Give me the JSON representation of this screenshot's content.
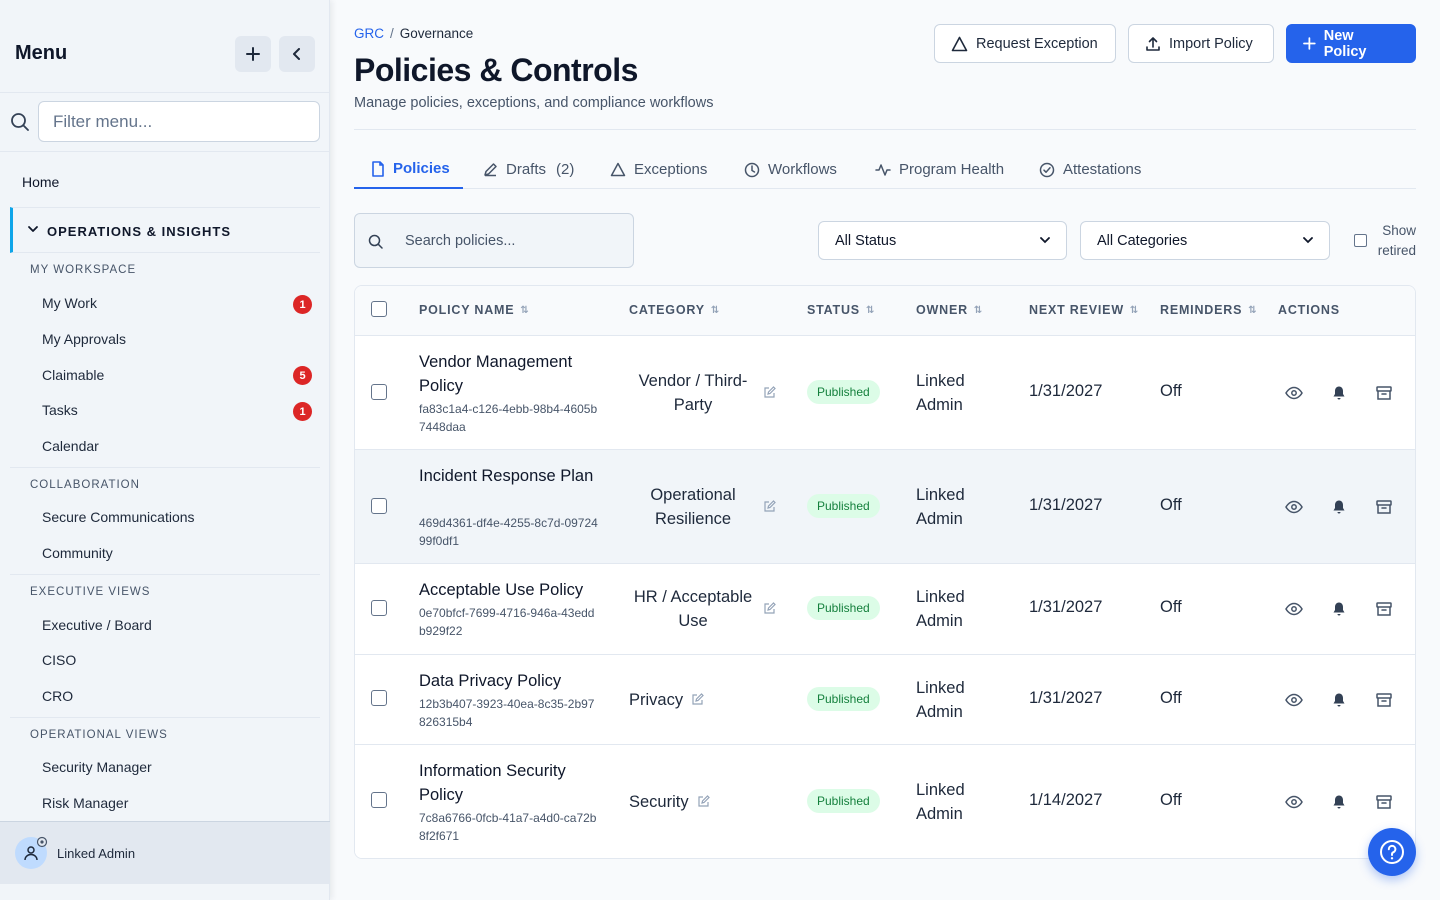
{
  "sidebar": {
    "title": "Menu",
    "filter_placeholder": "Filter menu...",
    "home": "Home",
    "group_label": "OPERATIONS & INSIGHTS",
    "sections": {
      "my_workspace": "MY WORKSPACE",
      "collaboration": "COLLABORATION",
      "executive_views": "EXECUTIVE VIEWS",
      "operational_views": "OPERATIONAL VIEWS"
    },
    "items": {
      "my_work": {
        "label": "My Work",
        "badge": "1"
      },
      "my_approvals": {
        "label": "My Approvals"
      },
      "claimable": {
        "label": "Claimable",
        "badge": "5"
      },
      "tasks": {
        "label": "Tasks",
        "badge": "1"
      },
      "calendar": {
        "label": "Calendar"
      },
      "secure_communications": {
        "label": "Secure Communications"
      },
      "community": {
        "label": "Community"
      },
      "executive_board": {
        "label": "Executive / Board"
      },
      "ciso": {
        "label": "CISO"
      },
      "cro": {
        "label": "CRO"
      },
      "security_manager": {
        "label": "Security Manager"
      },
      "risk_manager": {
        "label": "Risk Manager"
      }
    },
    "user": "Linked Admin"
  },
  "header": {
    "breadcrumb": [
      "GRC",
      "Governance"
    ],
    "title": "Policies & Controls",
    "subtitle": "Manage policies, exceptions, and compliance workflows",
    "buttons": {
      "request_exception": "Request Exception",
      "import_policy": "Import Policy",
      "new_policy": "New Policy"
    }
  },
  "tabs": [
    {
      "label": "Policies",
      "icon": "file-icon"
    },
    {
      "label": "Drafts",
      "count": "(2)",
      "icon": "pencil-icon"
    },
    {
      "label": "Exceptions",
      "icon": "warning-icon"
    },
    {
      "label": "Workflows",
      "icon": "clock-icon"
    },
    {
      "label": "Program Health",
      "icon": "activity-icon"
    },
    {
      "label": "Attestations",
      "icon": "check-circle-icon"
    }
  ],
  "filters": {
    "search_placeholder": "Search policies...",
    "status_select": "All Status",
    "category_select": "All Categories",
    "show_retired": "Show retired"
  },
  "table": {
    "columns": [
      "POLICY NAME",
      "CATEGORY",
      "STATUS",
      "OWNER",
      "NEXT REVIEW",
      "REMINDERS",
      "ACTIONS"
    ],
    "rows": [
      {
        "name": "Vendor Management Policy",
        "id": "fa83c1a4-c126-4ebb-98b4-4605b7448daa",
        "category": "Vendor / Third-Party",
        "status": "Published",
        "owner": "Linked Admin",
        "next_review": "1/31/2027",
        "reminders": "Off"
      },
      {
        "name": "Incident Response Plan",
        "id": "469d4361-df4e-4255-8c7d-0972499f0df1",
        "category": "Operational Resilience",
        "status": "Published",
        "owner": "Linked Admin",
        "next_review": "1/31/2027",
        "reminders": "Off"
      },
      {
        "name": "Acceptable Use Policy",
        "id": "0e70bfcf-7699-4716-946a-43eddb929f22",
        "category": "HR / Acceptable Use",
        "status": "Published",
        "owner": "Linked Admin",
        "next_review": "1/31/2027",
        "reminders": "Off"
      },
      {
        "name": "Data Privacy Policy",
        "id": "12b3b407-3923-40ea-8c35-2b97826315b4",
        "category": "Privacy",
        "status": "Published",
        "owner": "Linked Admin",
        "next_review": "1/31/2027",
        "reminders": "Off"
      },
      {
        "name": "Information Security Policy",
        "id": "7c8a6766-0fcb-41a7-a4d0-ca72b8f2f671",
        "category": "Security",
        "status": "Published",
        "owner": "Linked Admin",
        "next_review": "1/14/2027",
        "reminders": "Off"
      }
    ]
  },
  "colors": {
    "accent": "#2563eb",
    "badge_red": "#dc2626",
    "published_bg": "#dcfce7",
    "published_text": "#15803d"
  }
}
